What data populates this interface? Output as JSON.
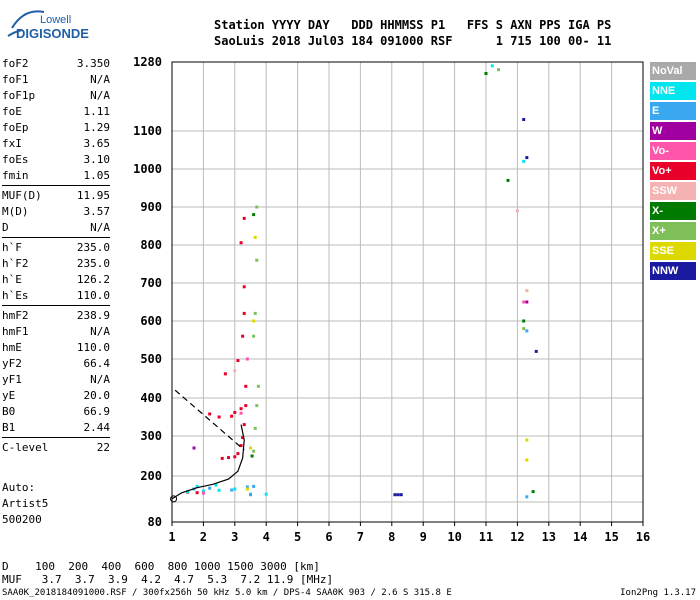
{
  "logo": {
    "line1": "Lowell",
    "line2": "DIGISONDE"
  },
  "header": {
    "row1": "Station YYYY DAY   DDD HHMMSS P1   FFS S AXN PPS IGA PS",
    "row2": "SaoLuis 2018 Jul03 184 091000 RSF      1 715 100 00- 11"
  },
  "params": [
    {
      "key": "foF2",
      "val": "3.350"
    },
    {
      "key": "foF1",
      "val": "N/A"
    },
    {
      "key": "foF1p",
      "val": "N/A"
    },
    {
      "key": "foE",
      "val": "1.11"
    },
    {
      "key": "foEp",
      "val": "1.29"
    },
    {
      "key": "fxI",
      "val": "3.65"
    },
    {
      "key": "foEs",
      "val": "3.10"
    },
    {
      "key": "fmin",
      "val": "1.05"
    },
    {
      "key": "MUF(D)",
      "val": "11.95"
    },
    {
      "key": "M(D)",
      "val": "3.57"
    },
    {
      "key": "D",
      "val": "N/A"
    },
    {
      "key": "h`F",
      "val": "235.0"
    },
    {
      "key": "h`F2",
      "val": "235.0"
    },
    {
      "key": "h`E",
      "val": "126.2"
    },
    {
      "key": "h`Es",
      "val": "110.0"
    },
    {
      "key": "hmF2",
      "val": "238.9"
    },
    {
      "key": "hmF1",
      "val": "N/A"
    },
    {
      "key": "hmE",
      "val": "110.0"
    },
    {
      "key": "yF2",
      "val": "66.4"
    },
    {
      "key": "yF1",
      "val": "N/A"
    },
    {
      "key": "yE",
      "val": "20.0"
    },
    {
      "key": "B0",
      "val": "66.9"
    },
    {
      "key": "B1",
      "val": "2.44"
    },
    {
      "key": "C-level",
      "val": "22"
    }
  ],
  "auto": {
    "l1": "Auto:",
    "l2": "Artist5",
    "l3": "500200"
  },
  "legend": [
    {
      "label": "NoVal",
      "color": "#a9a9a9"
    },
    {
      "label": "NNE",
      "color": "#00e5ee"
    },
    {
      "label": "E",
      "color": "#3aa8f0"
    },
    {
      "label": "W",
      "color": "#a000a0"
    },
    {
      "label": "Vo-",
      "color": "#ff55aa"
    },
    {
      "label": "Vo+",
      "color": "#e8002a"
    },
    {
      "label": "SSW",
      "color": "#f5b2b2"
    },
    {
      "label": "X-",
      "color": "#007a00"
    },
    {
      "label": "X+",
      "color": "#7fbf5a"
    },
    {
      "label": "SSE",
      "color": "#dcd800"
    },
    {
      "label": "NNW",
      "color": "#1a1aa0"
    }
  ],
  "bottom": {
    "d_row": "D    100  200  400  600  800 1000 1500 3000 [km]",
    "muf_row": "MUF   3.7  3.7  3.9  4.2  4.7  5.3  7.2 11.9 [MHz]"
  },
  "footer": {
    "left": "SAA0K_2018184091000.RSF / 300fx256h 50 kHz 5.0 km / DPS-4 SAA0K 903 / 2.6 S 315.8 E",
    "right": "Ion2Png 1.3.17"
  },
  "chart_data": {
    "type": "scatter",
    "x_ticks": [
      "1",
      "2",
      "3",
      "4",
      "5",
      "6",
      "7",
      "8",
      "9",
      "10",
      "11",
      "12",
      "13",
      "14",
      "15",
      "16"
    ],
    "y_ticks": [
      "80",
      "200",
      "300",
      "400",
      "500",
      "600",
      "700",
      "800",
      "900",
      "1000",
      "1100",
      "1280"
    ],
    "xlim": [
      1,
      16
    ],
    "ylim": [
      80,
      1280
    ],
    "grid": true,
    "legend_position": "right",
    "series": [
      {
        "name": "Vo+",
        "color": "#e8002a",
        "points": [
          [
            2.6,
            244
          ],
          [
            2.8,
            246
          ],
          [
            3.0,
            248
          ],
          [
            3.1,
            256
          ],
          [
            3.2,
            276
          ],
          [
            3.25,
            296
          ],
          [
            3.3,
            330
          ],
          [
            3.35,
            380
          ],
          [
            3.35,
            430
          ],
          [
            2.2,
            358
          ],
          [
            2.5,
            350
          ],
          [
            2.9,
            352
          ],
          [
            3.0,
            362
          ],
          [
            3.2,
            372
          ],
          [
            2.7,
            462
          ],
          [
            3.1,
            496
          ],
          [
            3.25,
            560
          ],
          [
            3.3,
            620
          ],
          [
            3.3,
            690
          ],
          [
            1.5,
            138
          ],
          [
            1.8,
            136
          ],
          [
            3.2,
            806
          ],
          [
            3.3,
            870
          ]
        ]
      },
      {
        "name": "NNE",
        "color": "#00e5ee",
        "points": [
          [
            1.5,
            140
          ],
          [
            2.0,
            142
          ],
          [
            2.5,
            145
          ],
          [
            3.0,
            150
          ],
          [
            3.5,
            130
          ],
          [
            4.0,
            130
          ],
          [
            1.8,
            160
          ],
          [
            2.4,
            165
          ],
          [
            11.2,
            1270
          ],
          [
            12.2,
            1020
          ]
        ]
      },
      {
        "name": "E",
        "color": "#3aa8f0",
        "points": [
          [
            1.7,
            150
          ],
          [
            2.2,
            153
          ],
          [
            2.9,
            146
          ],
          [
            3.4,
            158
          ],
          [
            3.6,
            160
          ],
          [
            3.5,
            128
          ],
          [
            12.3,
            574
          ],
          [
            12.3,
            120
          ]
        ]
      },
      {
        "name": "X+",
        "color": "#7fbf5a",
        "points": [
          [
            3.6,
            262
          ],
          [
            3.65,
            320
          ],
          [
            3.7,
            380
          ],
          [
            3.75,
            430
          ],
          [
            3.6,
            560
          ],
          [
            3.65,
            620
          ],
          [
            3.7,
            760
          ],
          [
            3.7,
            900
          ],
          [
            11.4,
            1260
          ],
          [
            12.2,
            580
          ]
        ]
      },
      {
        "name": "X-",
        "color": "#007a00",
        "points": [
          [
            3.55,
            250
          ],
          [
            3.6,
            880
          ],
          [
            11.0,
            1250
          ],
          [
            11.7,
            970
          ],
          [
            12.2,
            600
          ],
          [
            12.5,
            140
          ]
        ]
      },
      {
        "name": "SSE",
        "color": "#dcd800",
        "points": [
          [
            3.4,
            150
          ],
          [
            3.5,
            270
          ],
          [
            3.6,
            600
          ],
          [
            3.65,
            820
          ],
          [
            12.3,
            680
          ],
          [
            12.3,
            290
          ],
          [
            12.3,
            240
          ]
        ]
      },
      {
        "name": "NNW",
        "color": "#1a1aa0",
        "points": [
          [
            8.1,
            128
          ],
          [
            8.2,
            128
          ],
          [
            8.3,
            128
          ],
          [
            12.2,
            1130
          ],
          [
            12.3,
            1030
          ],
          [
            12.6,
            520
          ]
        ]
      },
      {
        "name": "W",
        "color": "#a000a0",
        "points": [
          [
            1.7,
            270
          ],
          [
            12.3,
            650
          ]
        ]
      },
      {
        "name": "Vo-",
        "color": "#ff55aa",
        "points": [
          [
            2.0,
            134
          ],
          [
            3.2,
            360
          ],
          [
            3.4,
            500
          ],
          [
            12.2,
            650
          ]
        ]
      },
      {
        "name": "SSW",
        "color": "#f5b2b2",
        "points": [
          [
            3.0,
            470
          ],
          [
            12.0,
            890
          ],
          [
            12.3,
            680
          ]
        ]
      }
    ]
  }
}
